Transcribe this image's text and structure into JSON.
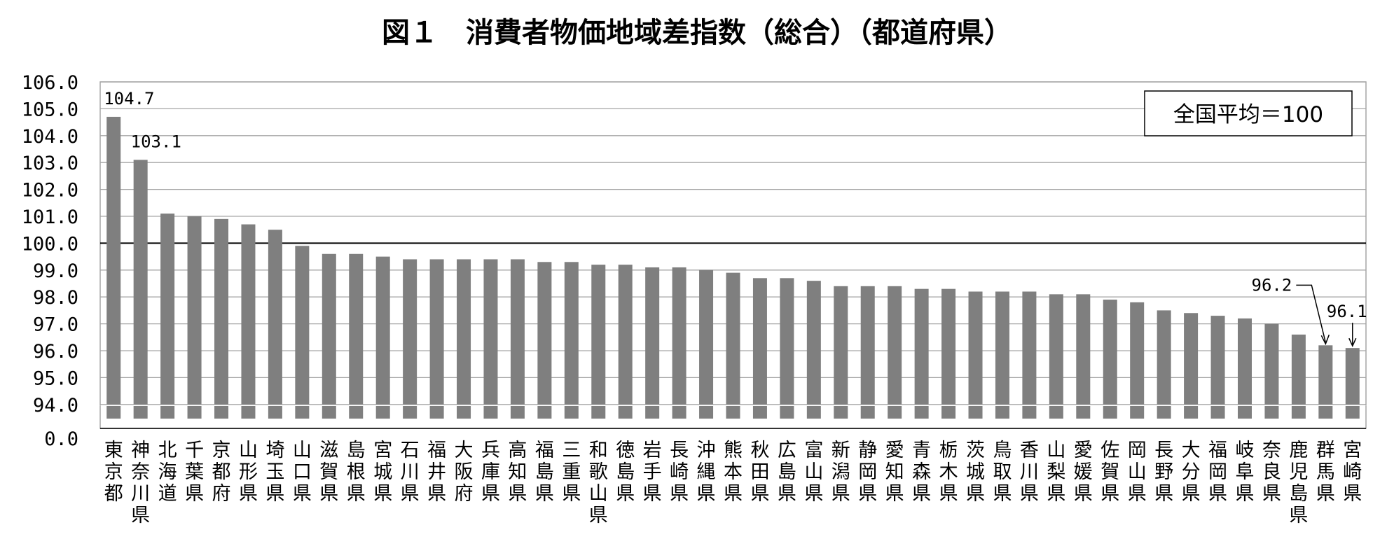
{
  "chart_data": {
    "type": "bar",
    "title": "図１　消費者物価地域差指数（総合）（都道府県）",
    "legend_note": "全国平均＝100",
    "legend_placement": "top-right",
    "grid": true,
    "reference_line": 100,
    "ylim": [
      94,
      106
    ],
    "broken_axis_base": 0,
    "y_ticks": [
      "106.0",
      "105.0",
      "104.0",
      "103.0",
      "102.0",
      "101.0",
      "100.0",
      "99.0",
      "98.0",
      "97.0",
      "96.0",
      "95.0",
      "94.0"
    ],
    "y_base_tick": "0.0",
    "categories": [
      "東京都",
      "神奈川県",
      "北海道",
      "千葉県",
      "京都府",
      "山形県",
      "埼玉県",
      "山口県",
      "滋賀県",
      "島根県",
      "宮城県",
      "石川県",
      "福井県",
      "大阪府",
      "兵庫県",
      "高知県",
      "福島県",
      "三重県",
      "和歌山県",
      "徳島県",
      "岩手県",
      "長崎県",
      "沖縄県",
      "熊本県",
      "秋田県",
      "広島県",
      "富山県",
      "新潟県",
      "静岡県",
      "愛知県",
      "青森県",
      "栃木県",
      "茨城県",
      "鳥取県",
      "香川県",
      "山梨県",
      "愛媛県",
      "佐賀県",
      "岡山県",
      "長野県",
      "大分県",
      "福岡県",
      "岐阜県",
      "奈良県",
      "鹿児島県",
      "群馬県",
      "宮崎県"
    ],
    "values": [
      104.7,
      103.1,
      101.1,
      101.0,
      100.9,
      100.7,
      100.5,
      99.9,
      99.6,
      99.6,
      99.5,
      99.4,
      99.4,
      99.4,
      99.4,
      99.4,
      99.3,
      99.3,
      99.2,
      99.2,
      99.1,
      99.1,
      99.0,
      98.9,
      98.7,
      98.7,
      98.6,
      98.4,
      98.4,
      98.4,
      98.3,
      98.3,
      98.2,
      98.2,
      98.2,
      98.1,
      98.1,
      97.9,
      97.8,
      97.5,
      97.4,
      97.3,
      97.2,
      97.0,
      96.6,
      96.2,
      96.1
    ],
    "data_labels": [
      {
        "category": "東京都",
        "text": "104.7"
      },
      {
        "category": "神奈川県",
        "text": "103.1"
      },
      {
        "category": "群馬県",
        "text": "96.2"
      },
      {
        "category": "宮崎県",
        "text": "96.1"
      }
    ],
    "colors": {
      "bar": "#7f7f7f",
      "grid": "#a6a6a6",
      "reference": "#000000"
    }
  }
}
